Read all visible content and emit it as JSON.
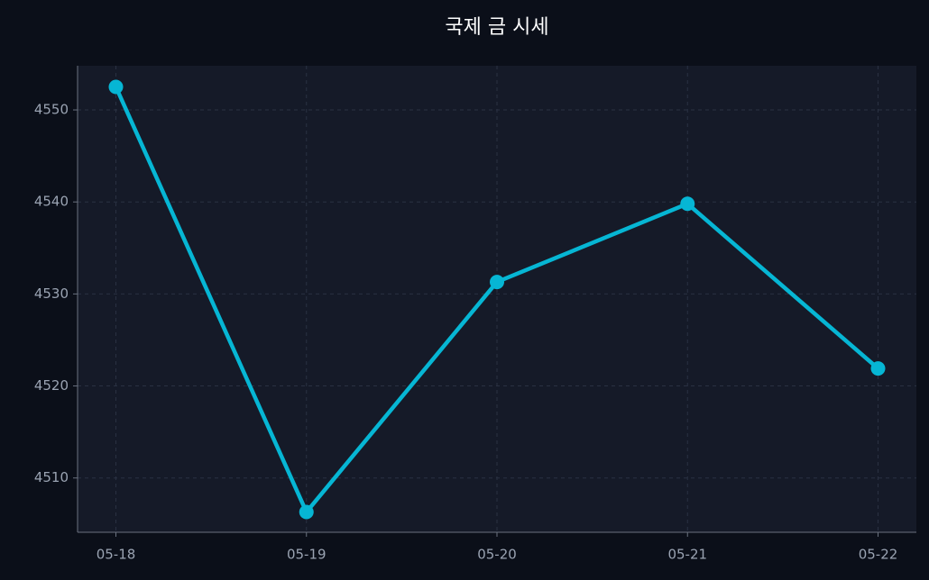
{
  "chart_data": {
    "type": "line",
    "title": "국제 금 시세",
    "categories": [
      "05-18",
      "05-19",
      "05-20",
      "05-21",
      "05-22"
    ],
    "series": [
      {
        "name": "국제 금 시세",
        "color": "#06b6d4",
        "values": [
          4552.5,
          4506.3,
          4531.3,
          4539.8,
          4521.9
        ]
      }
    ],
    "ylim": [
      4504.1,
      4554.8
    ],
    "yticks": [
      4510,
      4520,
      4530,
      4540,
      4550
    ],
    "grid": true
  }
}
